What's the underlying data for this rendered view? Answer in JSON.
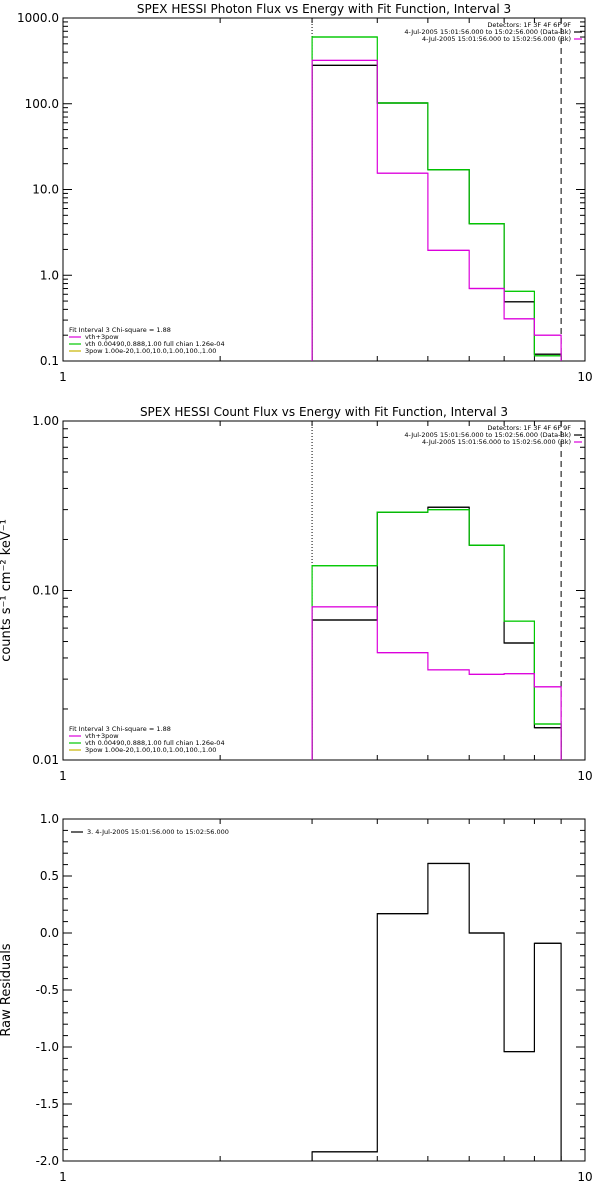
{
  "chart_data": [
    {
      "type": "line",
      "title": "SPEX HESSI Photon Flux vs Energy with Fit Function, Interval 3",
      "xlabel": "",
      "ylabel": "",
      "x_scale": "log",
      "y_scale": "log",
      "xlim": [
        1,
        10
      ],
      "ylim": [
        0.1,
        1000
      ],
      "x_ticks": [
        "1",
        "10"
      ],
      "y_ticks": [
        "0.1",
        "1.0",
        "10.0",
        "100.0",
        "1000.0"
      ],
      "bin_edges": [
        3,
        4,
        5,
        6,
        7,
        8,
        9
      ],
      "series": [
        {
          "name": "",
          "color": "#000000",
          "values": [
            280,
            102,
            17,
            4.0,
            0.49,
            0.12
          ]
        },
        {
          "name": "",
          "color": "#00c800",
          "values": [
            600,
            102,
            17,
            4.0,
            0.65,
            0.115
          ]
        },
        {
          "name": "",
          "color": "#dc00dc",
          "values": [
            320,
            15.5,
            1.95,
            0.7,
            0.31,
            0.2
          ]
        }
      ],
      "vlines": [
        {
          "x": 3,
          "style": "dotted"
        },
        {
          "x": 9,
          "style": "dashed"
        }
      ],
      "info_lines": [
        "Detectors: 1F 3F 4F 6F 9F",
        "4-Jul-2005 15:01:56.000 to 15:02:56.000 (Data-Bk)",
        "4-Jul-2005 15:01:56.000 to 15:02:56.000 (Bk)"
      ],
      "info_colors": [
        "#000000",
        "#000000",
        "#dc00dc"
      ],
      "fit_lines": [
        "Fit Interval 3   Chi-square = 1.88",
        "vth+3pow",
        "vth 0.00490,0.888,1.00  full chian 1.26e-04",
        "3pow 1.00e-20,1.00,10.0,1.00,100.,1.00"
      ],
      "fit_colors": [
        "#000000",
        "#dc00dc",
        "#00c800",
        "#c8b400"
      ]
    },
    {
      "type": "line",
      "title": "SPEX HESSI Count Flux vs Energy with Fit Function, Interval 3",
      "xlabel": "",
      "ylabel": "counts s⁻¹ cm⁻² keV⁻¹",
      "x_scale": "log",
      "y_scale": "log",
      "xlim": [
        1,
        10
      ],
      "ylim": [
        0.01,
        1.0
      ],
      "x_ticks": [
        "1",
        "10"
      ],
      "y_ticks": [
        "0.01",
        "0.10",
        "1.00"
      ],
      "bin_edges": [
        3,
        4,
        5,
        6,
        7,
        8,
        9
      ],
      "series": [
        {
          "name": "",
          "color": "#000000",
          "values": [
            0.067,
            0.29,
            0.31,
            0.185,
            0.049,
            0.0155
          ]
        },
        {
          "name": "",
          "color": "#00c800",
          "values": [
            0.14,
            0.29,
            0.3,
            0.185,
            0.066,
            0.0163
          ]
        },
        {
          "name": "",
          "color": "#dc00dc",
          "values": [
            0.08,
            0.043,
            0.034,
            0.032,
            0.0323,
            0.027
          ]
        }
      ],
      "vlines": [
        {
          "x": 3,
          "style": "dotted"
        },
        {
          "x": 9,
          "style": "dashed"
        }
      ],
      "info_lines": [
        "Detectors: 1F 3F 4F 6F 9F",
        "4-Jul-2005 15:01:56.000 to 15:02:56.000 (Data-Bk)",
        "4-Jul-2005 15:01:56.000 to 15:02:56.000 (Bk)"
      ],
      "info_colors": [
        "#000000",
        "#000000",
        "#dc00dc"
      ],
      "fit_lines": [
        "Fit Interval 3   Chi-square = 1.88",
        "vth+3pow",
        "vth 0.00490,0.888,1.00  full chian 1.26e-04",
        "3pow 1.00e-20,1.00,10.0,1.00,100.,1.00"
      ],
      "fit_colors": [
        "#000000",
        "#dc00dc",
        "#00c800",
        "#c8b400"
      ]
    },
    {
      "type": "line",
      "title": "",
      "xlabel": "",
      "ylabel": "Raw Residuals",
      "x_scale": "log",
      "y_scale": "linear",
      "xlim": [
        1,
        10
      ],
      "ylim": [
        -2.0,
        1.0
      ],
      "x_ticks": [
        "1",
        "10"
      ],
      "y_ticks": [
        "-2.0",
        "-1.5",
        "-1.0",
        "-0.5",
        "0.0",
        "0.5",
        "1.0"
      ],
      "bin_edges": [
        3,
        4,
        5,
        6,
        7,
        8,
        9
      ],
      "series": [
        {
          "name": "3.  4-Jul-2005 15:01:56.000 to 15:02:56.000",
          "color": "#000000",
          "values": [
            -1.92,
            0.17,
            0.61,
            0.0,
            -1.04,
            -0.09
          ]
        }
      ],
      "vlines": [],
      "info_lines": [],
      "info_colors": [],
      "fit_lines": [],
      "fit_colors": []
    }
  ]
}
